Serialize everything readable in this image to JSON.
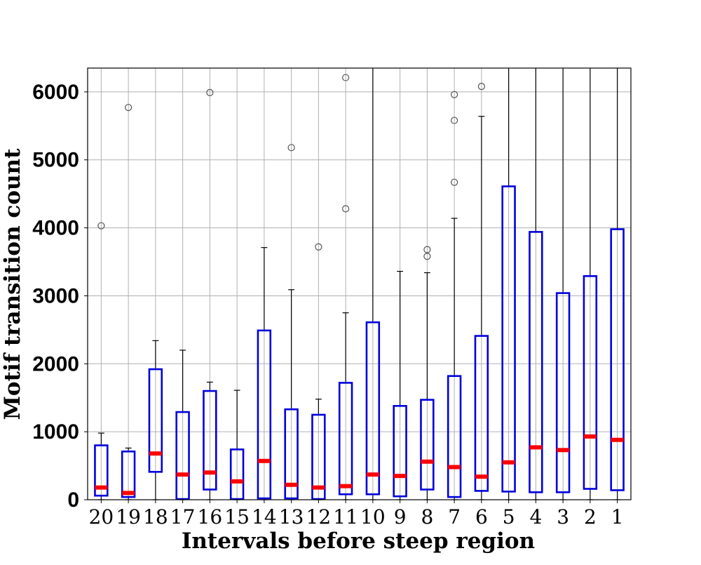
{
  "chart_data": {
    "type": "box",
    "title": "",
    "xlabel": "Intervals before steep region",
    "ylabel": "Motif transition count",
    "ylim": [
      0,
      6350
    ],
    "yticks": [
      "0",
      "1000",
      "2000",
      "3000",
      "4000",
      "5000",
      "6000"
    ],
    "grid": true,
    "colors": {
      "box": "#0000dd",
      "median": "#ff0000",
      "whisker": "#000000",
      "flier": "#555555",
      "grid": "#b0b0b0"
    },
    "categories": [
      "20",
      "19",
      "18",
      "17",
      "16",
      "15",
      "14",
      "13",
      "12",
      "11",
      "10",
      "9",
      "8",
      "7",
      "6",
      "5",
      "4",
      "3",
      "2",
      "1"
    ],
    "boxes": [
      {
        "label": "20",
        "q1": 60,
        "median": 180,
        "q3": 800,
        "whislo": 0,
        "whishi": 980,
        "fliers": [
          4030
        ]
      },
      {
        "label": "19",
        "q1": 40,
        "median": 100,
        "q3": 710,
        "whislo": 0,
        "whishi": 760,
        "fliers": [
          5770
        ]
      },
      {
        "label": "18",
        "q1": 410,
        "median": 680,
        "q3": 1920,
        "whislo": 0,
        "whishi": 2340,
        "fliers": []
      },
      {
        "label": "17",
        "q1": 10,
        "median": 370,
        "q3": 1290,
        "whislo": 0,
        "whishi": 2200,
        "fliers": []
      },
      {
        "label": "16",
        "q1": 150,
        "median": 400,
        "q3": 1600,
        "whislo": 0,
        "whishi": 1730,
        "fliers": [
          5990
        ]
      },
      {
        "label": "15",
        "q1": 10,
        "median": 270,
        "q3": 740,
        "whislo": 0,
        "whishi": 1610,
        "fliers": []
      },
      {
        "label": "14",
        "q1": 20,
        "median": 570,
        "q3": 2490,
        "whislo": 0,
        "whishi": 3710,
        "fliers": []
      },
      {
        "label": "13",
        "q1": 20,
        "median": 220,
        "q3": 1330,
        "whislo": 0,
        "whishi": 3090,
        "fliers": [
          5180
        ]
      },
      {
        "label": "12",
        "q1": 10,
        "median": 180,
        "q3": 1250,
        "whislo": 0,
        "whishi": 1480,
        "fliers": [
          3720
        ]
      },
      {
        "label": "11",
        "q1": 80,
        "median": 200,
        "q3": 1720,
        "whislo": 0,
        "whishi": 2750,
        "fliers": [
          4280,
          6210
        ]
      },
      {
        "label": "10",
        "q1": 80,
        "median": 370,
        "q3": 2610,
        "whislo": 0,
        "whishi": 6350,
        "fliers": []
      },
      {
        "label": "9",
        "q1": 50,
        "median": 350,
        "q3": 1380,
        "whislo": 0,
        "whishi": 3360,
        "fliers": []
      },
      {
        "label": "8",
        "q1": 150,
        "median": 560,
        "q3": 1470,
        "whislo": 0,
        "whishi": 3340,
        "fliers": [
          3580,
          3680
        ]
      },
      {
        "label": "7",
        "q1": 40,
        "median": 480,
        "q3": 1820,
        "whislo": 0,
        "whishi": 4140,
        "fliers": [
          4670,
          5580,
          5960
        ]
      },
      {
        "label": "6",
        "q1": 130,
        "median": 340,
        "q3": 2410,
        "whislo": 0,
        "whishi": 5640,
        "fliers": [
          6080
        ]
      },
      {
        "label": "5",
        "q1": 120,
        "median": 550,
        "q3": 4610,
        "whislo": 0,
        "whishi": 6350,
        "fliers": []
      },
      {
        "label": "4",
        "q1": 110,
        "median": 770,
        "q3": 3940,
        "whislo": 0,
        "whishi": 6350,
        "fliers": []
      },
      {
        "label": "3",
        "q1": 110,
        "median": 730,
        "q3": 3040,
        "whislo": 0,
        "whishi": 6350,
        "fliers": []
      },
      {
        "label": "2",
        "q1": 160,
        "median": 930,
        "q3": 3290,
        "whislo": 0,
        "whishi": 6350,
        "fliers": []
      },
      {
        "label": "1",
        "q1": 140,
        "median": 880,
        "q3": 3980,
        "whislo": 0,
        "whishi": 6350,
        "fliers": []
      }
    ]
  }
}
